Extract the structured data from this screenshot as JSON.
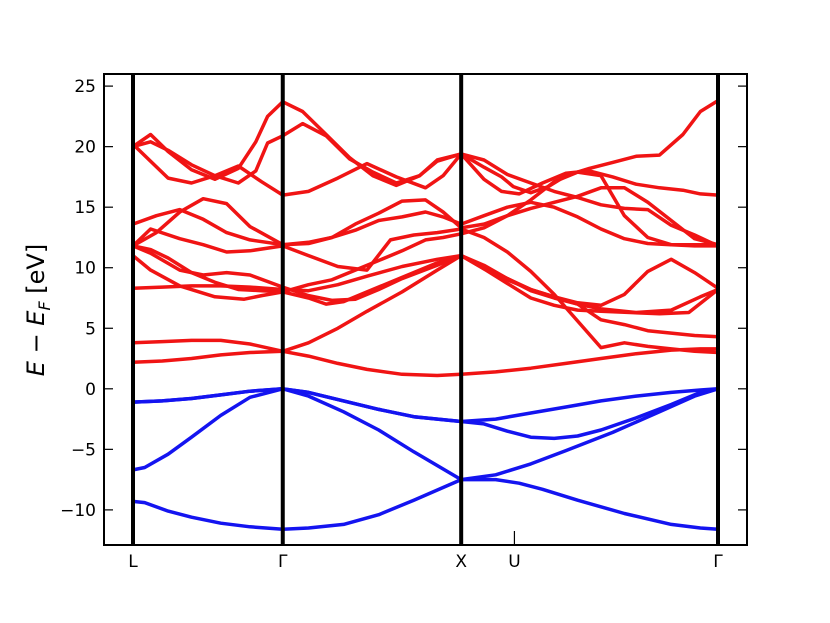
{
  "chart_data": {
    "type": "line",
    "ylabel_main": "E − E",
    "ylabel_sub": "F",
    "ylabel_unit": " [eV]",
    "ylim": [
      -12.9,
      26.0
    ],
    "xlim": [
      0,
      100
    ],
    "y_ticks": [
      {
        "value": 25,
        "label": "25"
      },
      {
        "value": 20,
        "label": "20"
      },
      {
        "value": 15,
        "label": "15"
      },
      {
        "value": 10,
        "label": "10"
      },
      {
        "value": 5,
        "label": "5"
      },
      {
        "value": 0,
        "label": "0"
      },
      {
        "value": -5,
        "label": "−5"
      },
      {
        "value": -10,
        "label": "−10"
      }
    ],
    "x_ticks": [
      {
        "value": 0,
        "label": "L"
      },
      {
        "value": 25.6,
        "label": "Γ"
      },
      {
        "value": 56.1,
        "label": "X"
      },
      {
        "value": 65.2,
        "label": "U"
      },
      {
        "value": 100,
        "label": "Γ"
      }
    ],
    "high_symmetry_lines": [
      0,
      25.6,
      56.1,
      100
    ],
    "grid": false,
    "colors": {
      "valence": "#1414f0",
      "conduction": "#f01414",
      "vline": "#000000"
    },
    "series": [
      {
        "band": "valence",
        "x": [
          0,
          2,
          6,
          10,
          15,
          20,
          25.6,
          30,
          36,
          42,
          48,
          56.1,
          62,
          66,
          70,
          76,
          84,
          92,
          97,
          100
        ],
        "y": [
          -9.3,
          -9.4,
          -10.1,
          -10.6,
          -11.1,
          -11.4,
          -11.6,
          -11.5,
          -11.2,
          -10.4,
          -9.2,
          -7.5,
          -7.5,
          -7.8,
          -8.3,
          -9.2,
          -10.3,
          -11.2,
          -11.5,
          -11.6
        ]
      },
      {
        "band": "valence",
        "x": [
          0,
          2,
          6,
          10,
          15,
          20,
          25.6,
          30,
          36,
          42,
          48,
          56.1,
          62,
          68,
          74,
          82,
          90,
          96,
          100
        ],
        "y": [
          -6.7,
          -6.5,
          -5.4,
          -4.0,
          -2.2,
          -0.7,
          0,
          -0.6,
          -1.9,
          -3.4,
          -5.2,
          -7.5,
          -7.1,
          -6.2,
          -5.1,
          -3.6,
          -1.9,
          -0.6,
          0
        ]
      },
      {
        "band": "valence",
        "x": [
          0,
          5,
          10,
          15,
          20,
          25.6,
          30,
          36,
          42,
          48,
          56.1,
          60,
          64,
          68,
          72,
          76,
          80,
          86,
          92,
          97,
          100
        ],
        "y": [
          -1.1,
          -1.0,
          -0.8,
          -0.5,
          -0.2,
          0,
          -0.3,
          -1.0,
          -1.7,
          -2.3,
          -2.7,
          -2.9,
          -3.5,
          -4.0,
          -4.1,
          -3.9,
          -3.4,
          -2.4,
          -1.3,
          -0.3,
          0
        ]
      },
      {
        "band": "valence",
        "x": [
          0,
          5,
          10,
          15,
          20,
          25.6,
          30,
          36,
          42,
          48,
          56.1,
          62,
          68,
          74,
          80,
          86,
          92,
          97,
          100
        ],
        "y": [
          -1.1,
          -1.0,
          -0.8,
          -0.5,
          -0.2,
          0,
          -0.3,
          -1.0,
          -1.7,
          -2.3,
          -2.7,
          -2.5,
          -2.0,
          -1.5,
          -1.0,
          -0.6,
          -0.3,
          -0.1,
          0
        ]
      },
      {
        "band": "conduction",
        "x": [
          0,
          5,
          10,
          15,
          20,
          25.6,
          30,
          35,
          40,
          46,
          52,
          56.1,
          62,
          68,
          74,
          80,
          86,
          92,
          97,
          100
        ],
        "y": [
          2.2,
          2.3,
          2.5,
          2.8,
          3.0,
          3.1,
          2.7,
          2.1,
          1.6,
          1.2,
          1.1,
          1.2,
          1.4,
          1.7,
          2.1,
          2.5,
          2.9,
          3.2,
          3.3,
          3.3
        ]
      },
      {
        "band": "conduction",
        "x": [
          0,
          5,
          10,
          15,
          20,
          25.6,
          30,
          35,
          40,
          46,
          52,
          56.1,
          60,
          64,
          68,
          72,
          76,
          80,
          85,
          90,
          95,
          100
        ],
        "y": [
          3.8,
          3.9,
          4.0,
          4.0,
          3.7,
          3.1,
          3.8,
          5.0,
          6.4,
          8.0,
          9.8,
          11.0,
          9.9,
          8.7,
          7.5,
          6.9,
          6.5,
          6.4,
          6.3,
          6.2,
          6.3,
          8.2
        ]
      },
      {
        "band": "conduction",
        "x": [
          0,
          3,
          8,
          14,
          19,
          22,
          25.6,
          30,
          33,
          36,
          40,
          46,
          52,
          56.1,
          60,
          64,
          68,
          72,
          76,
          80,
          86,
          92,
          97,
          100
        ],
        "y": [
          11.0,
          9.8,
          8.5,
          7.6,
          7.4,
          7.7,
          8.0,
          7.5,
          7.0,
          7.2,
          8.0,
          9.2,
          10.4,
          11.0,
          10.2,
          9.1,
          8.1,
          7.5,
          7.0,
          6.6,
          6.3,
          6.5,
          7.6,
          8.2
        ]
      },
      {
        "band": "conduction",
        "x": [
          0,
          5,
          10,
          15,
          20,
          25.6,
          30,
          35,
          40,
          46,
          52,
          56.1,
          60,
          64,
          68,
          72,
          76,
          80,
          84,
          88,
          92,
          96,
          100
        ],
        "y": [
          8.3,
          8.4,
          8.5,
          8.5,
          8.4,
          8.2,
          8.1,
          8.6,
          9.3,
          10.1,
          10.7,
          11.0,
          10.0,
          9.1,
          8.2,
          7.6,
          7.1,
          6.9,
          7.8,
          9.7,
          10.7,
          9.6,
          8.3
        ]
      },
      {
        "band": "conduction",
        "x": [
          0,
          3,
          8,
          12,
          16,
          20,
          25.6,
          30,
          34,
          38,
          42,
          46,
          52,
          56.1,
          60,
          64,
          68,
          72,
          76,
          80,
          84,
          88,
          92,
          96,
          100
        ],
        "y": [
          11.8,
          11.2,
          9.8,
          9.4,
          9.6,
          9.4,
          8.4,
          7.7,
          7.3,
          7.4,
          8.2,
          9.1,
          10.2,
          11.0,
          9.9,
          9.0,
          8.2,
          7.6,
          7.0,
          5.7,
          5.3,
          4.8,
          4.6,
          4.4,
          4.3
        ]
      },
      {
        "band": "conduction",
        "x": [
          0,
          3,
          8,
          12,
          16,
          20,
          25.6,
          30,
          35,
          40,
          44,
          48,
          52,
          56.1,
          60,
          64,
          68,
          72,
          76,
          80,
          84,
          88,
          92,
          96,
          100
        ],
        "y": [
          11.8,
          13.2,
          12.4,
          11.9,
          11.3,
          11.4,
          11.8,
          11.0,
          10.1,
          9.8,
          12.3,
          12.7,
          12.9,
          13.2,
          12.5,
          11.3,
          9.7,
          7.8,
          5.6,
          3.4,
          3.8,
          3.5,
          3.3,
          3.1,
          3.0
        ]
      },
      {
        "band": "conduction",
        "x": [
          0,
          3,
          6,
          10,
          14,
          18,
          22,
          25.6,
          30,
          34,
          38,
          42,
          46,
          50,
          53,
          56.1,
          60,
          64,
          68,
          72,
          76,
          80,
          84,
          88,
          92,
          96,
          100
        ],
        "y": [
          11.8,
          11.5,
          10.8,
          9.6,
          8.8,
          8.2,
          8.1,
          8.0,
          8.6,
          9.0,
          9.8,
          10.6,
          11.4,
          12.3,
          12.5,
          12.8,
          13.3,
          14.3,
          14.9,
          15.4,
          15.9,
          16.6,
          16.6,
          15.4,
          13.9,
          12.4,
          11.9
        ]
      },
      {
        "band": "conduction",
        "x": [
          0,
          4,
          8,
          12,
          16,
          20,
          25.6,
          30,
          34,
          38,
          42,
          46,
          50,
          53,
          56.1,
          60,
          64,
          68,
          72,
          76,
          80,
          84,
          88,
          92,
          96,
          100
        ],
        "y": [
          11.8,
          12.9,
          14.6,
          15.7,
          15.3,
          13.4,
          11.9,
          12.1,
          12.5,
          13.1,
          13.9,
          14.2,
          14.6,
          14.2,
          13.6,
          14.3,
          15.0,
          15.4,
          15.0,
          14.2,
          13.2,
          12.4,
          12.0,
          11.9,
          11.9,
          11.9
        ]
      },
      {
        "band": "conduction",
        "x": [
          0,
          4,
          8,
          12,
          16,
          20,
          25.6,
          30,
          34,
          38,
          42,
          46,
          50,
          53,
          56.1,
          60,
          64,
          68,
          72,
          76,
          80,
          84,
          88,
          92,
          96,
          100
        ],
        "y": [
          13.6,
          14.3,
          14.8,
          14.0,
          12.9,
          12.3,
          11.9,
          12.0,
          12.5,
          13.6,
          14.5,
          15.5,
          15.6,
          14.6,
          13.3,
          13.6,
          14.3,
          15.6,
          17.1,
          17.9,
          17.6,
          14.3,
          12.5,
          11.9,
          11.8,
          11.8
        ]
      },
      {
        "band": "conduction",
        "x": [
          0,
          3,
          6,
          10,
          14,
          18,
          22,
          25.6,
          30,
          35,
          40,
          45,
          50,
          53,
          56.1,
          60,
          64,
          68,
          72,
          76,
          80,
          84,
          88,
          92,
          96,
          100
        ],
        "y": [
          20.2,
          18.8,
          17.4,
          17.0,
          17.6,
          18.4,
          17.1,
          16.0,
          16.3,
          17.4,
          18.6,
          17.5,
          16.6,
          17.6,
          19.4,
          18.9,
          17.7,
          17.0,
          16.3,
          15.8,
          15.2,
          14.9,
          14.8,
          13.5,
          12.7,
          11.8
        ]
      },
      {
        "band": "conduction",
        "x": [
          0,
          3,
          6,
          10,
          14,
          18,
          21,
          23,
          25.6,
          29,
          33,
          37,
          41,
          45,
          49,
          52,
          56.1,
          60,
          63,
          65,
          68,
          71,
          74,
          78,
          82,
          86,
          90,
          94,
          97,
          100
        ],
        "y": [
          20.0,
          21.0,
          19.6,
          18.1,
          17.3,
          18.2,
          20.4,
          22.5,
          23.7,
          22.9,
          21.0,
          19.1,
          17.6,
          16.8,
          17.6,
          18.9,
          19.4,
          18.3,
          17.5,
          16.7,
          16.2,
          16.7,
          17.6,
          18.2,
          18.7,
          19.2,
          19.3,
          21.0,
          22.9,
          23.8
        ]
      },
      {
        "band": "conduction",
        "x": [
          0,
          3,
          6,
          10,
          14,
          18,
          21,
          23,
          25.6,
          29,
          33,
          37,
          41,
          45,
          49,
          52,
          56.1,
          60,
          63,
          66,
          70,
          74,
          78,
          82,
          86,
          90,
          94,
          97,
          100
        ],
        "y": [
          20.0,
          20.4,
          19.7,
          18.5,
          17.6,
          17.0,
          18.0,
          20.3,
          20.9,
          21.9,
          20.9,
          19.0,
          17.9,
          17.0,
          17.6,
          18.8,
          19.4,
          17.3,
          16.3,
          16.1,
          17.0,
          17.8,
          18.0,
          17.5,
          16.9,
          16.6,
          16.4,
          16.1,
          16.0
        ]
      }
    ]
  }
}
